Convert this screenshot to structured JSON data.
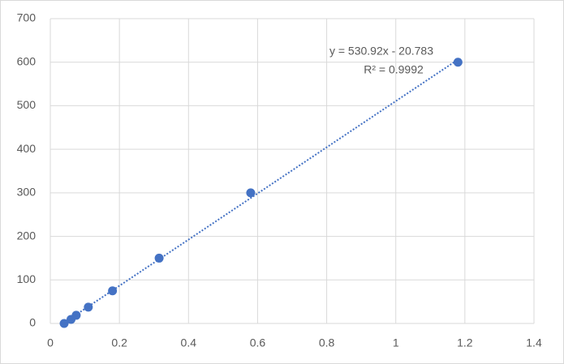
{
  "chart_data": {
    "type": "scatter",
    "annotations": [
      "y = 530.92x - 20.783",
      "R² = 0.9992"
    ],
    "series": [
      {
        "color": "#4472c4",
        "x": [
          0.04,
          0.06,
          0.075,
          0.11,
          0.18,
          0.315,
          0.58,
          1.18
        ],
        "values": [
          0,
          9.4,
          18.75,
          37.5,
          75,
          150,
          300,
          600
        ]
      }
    ],
    "trendline": "linear",
    "xlim": [
      0,
      1.4
    ],
    "xticks": [
      0,
      0.2,
      0.4,
      0.6,
      0.8,
      1,
      1.2,
      1.4
    ],
    "ylim": [
      0,
      700
    ],
    "yticks": [
      0,
      100,
      200,
      300,
      400,
      500,
      600,
      700
    ],
    "grid": true
  }
}
